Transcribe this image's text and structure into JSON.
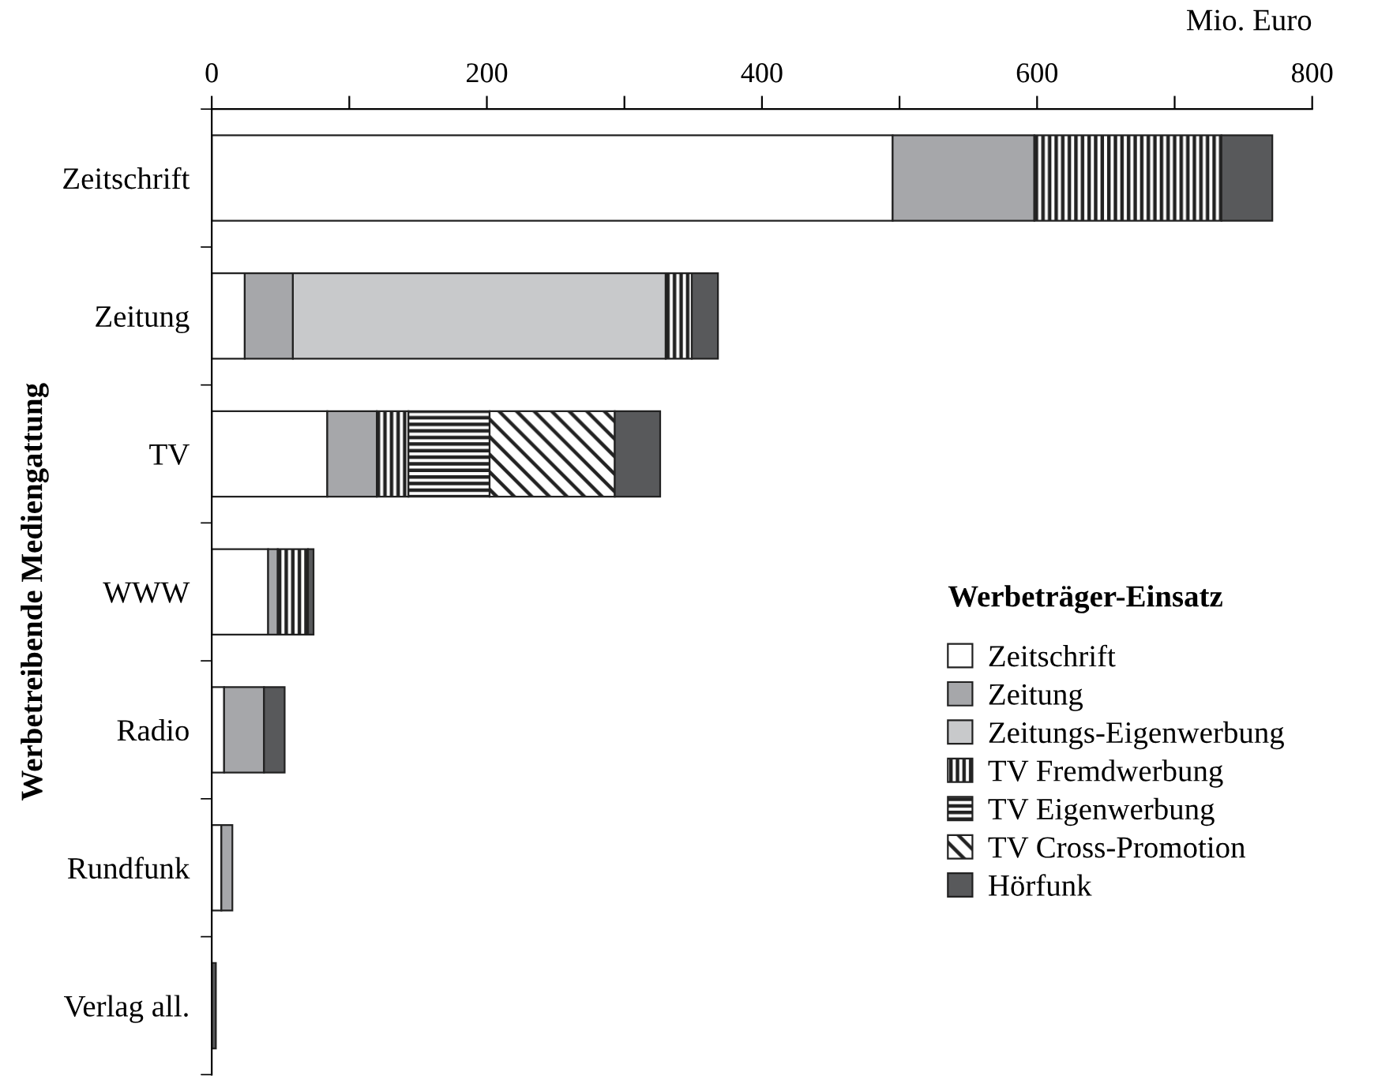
{
  "chart_data": {
    "type": "bar",
    "orientation": "horizontal",
    "stacked": true,
    "categories": [
      "Zeitschrift",
      "Zeitung",
      "TV",
      "WWW",
      "Radio",
      "Rundfunk",
      "Verlag all."
    ],
    "xlabel": "Mio. Euro",
    "ylabel": "Werbetreibende Mediengattung",
    "legend_title": "Werbeträger-Einsatz",
    "xlim": [
      0,
      800
    ],
    "xticks": [
      0,
      {
        "value": 100,
        "label": null
      },
      200,
      {
        "value": 300,
        "label": null
      },
      400,
      {
        "value": 500,
        "label": null
      },
      600,
      {
        "value": 700,
        "label": null
      },
      800
    ],
    "grid": false,
    "legend": "bottom right",
    "series": [
      {
        "name": "Zeitschrift",
        "color": "#ffffff",
        "values": [
          495,
          24,
          84,
          41,
          9,
          7,
          null
        ]
      },
      {
        "name": "Zeitung",
        "color": "#a6a7aa",
        "values": [
          103,
          35,
          36,
          7,
          29,
          8,
          null
        ]
      },
      {
        "name": "Zeitungs-Eigenwerbung",
        "color": "#c8c9cb",
        "values": [
          null,
          271,
          null,
          null,
          null,
          null,
          null
        ]
      },
      {
        "name": "TV Fremdwerbung",
        "color": "#222222",
        "values": [
          136,
          19,
          23,
          22,
          null,
          null,
          null
        ]
      },
      {
        "name": "TV Eigenwerbung",
        "color": "#222222",
        "values": [
          null,
          null,
          59,
          null,
          null,
          null,
          null
        ]
      },
      {
        "name": "TV Cross-Promotion",
        "color": "#222222",
        "values": [
          null,
          null,
          91,
          null,
          null,
          null,
          null
        ]
      },
      {
        "name": "Hörfunk",
        "color": "#58595b",
        "values": [
          37,
          19,
          33,
          4,
          15,
          null,
          3
        ]
      }
    ]
  }
}
